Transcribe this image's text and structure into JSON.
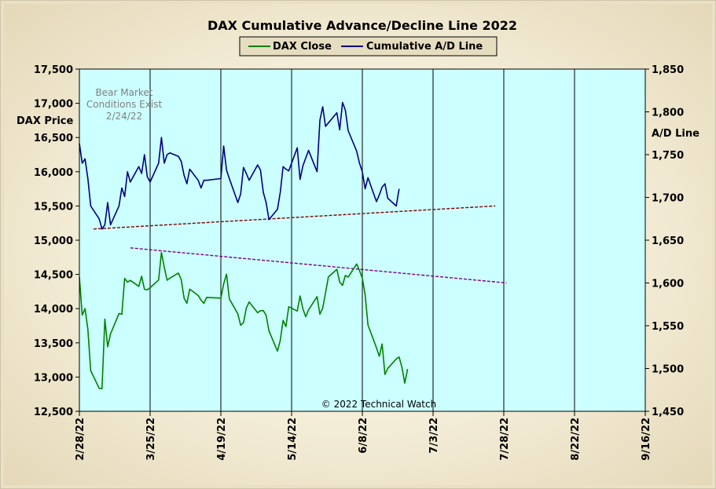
{
  "chart_data": {
    "type": "line",
    "title": "DAX Cumulative  Advance/Decline  Line  2022",
    "legend": {
      "position": "top-center",
      "entries": [
        {
          "label": "DAX Close",
          "color": "#008000"
        },
        {
          "label": "Cumulative A/D Line",
          "color": "#000080"
        }
      ]
    },
    "ylabel_left": "DAX Price",
    "ylabel_right": "A/D Line",
    "ylim_left": [
      12500,
      17500
    ],
    "ylim_right": [
      1450,
      1850
    ],
    "yticks_left": [
      "17,500",
      "17,000",
      "16,500",
      "16,000",
      "15,500",
      "15,000",
      "14,500",
      "14,000",
      "13,500",
      "13,000",
      "12,500"
    ],
    "yticks_right": [
      "1,850",
      "1,800",
      "1,750",
      "1,700",
      "1,650",
      "1,600",
      "1,550",
      "1,500",
      "1,450"
    ],
    "x_range": [
      "2022-02-28",
      "2022-09-16"
    ],
    "xticks": [
      "2/28/22",
      "3/25/22",
      "4/19/22",
      "5/14/22",
      "6/8/22",
      "7/3/22",
      "7/28/22",
      "8/22/22",
      "9/16/22"
    ],
    "grid": "vertical-only",
    "background": "#ccffff",
    "annotations": {
      "bear_market": [
        "Bear Market",
        "Conditions  Exist",
        "2/24/22"
      ],
      "copyright": "© 2022 Technical  Watch"
    },
    "series": [
      {
        "name": "DAX Close",
        "axis": "left",
        "color": "#008000",
        "points": [
          [
            "2022-02-28",
            14461
          ],
          [
            "2022-03-01",
            13905
          ],
          [
            "2022-03-02",
            14000
          ],
          [
            "2022-03-03",
            13699
          ],
          [
            "2022-03-04",
            13095
          ],
          [
            "2022-03-07",
            12835
          ],
          [
            "2022-03-08",
            12831
          ],
          [
            "2022-03-09",
            13848
          ],
          [
            "2022-03-10",
            13443
          ],
          [
            "2022-03-11",
            13629
          ],
          [
            "2022-03-14",
            13929
          ],
          [
            "2022-03-15",
            13918
          ],
          [
            "2022-03-16",
            14441
          ],
          [
            "2022-03-17",
            14388
          ],
          [
            "2022-03-18",
            14413
          ],
          [
            "2022-03-21",
            14326
          ],
          [
            "2022-03-22",
            14474
          ],
          [
            "2022-03-23",
            14283
          ],
          [
            "2022-03-24",
            14274
          ],
          [
            "2022-03-25",
            14306
          ],
          [
            "2022-03-28",
            14418
          ],
          [
            "2022-03-29",
            14820
          ],
          [
            "2022-03-30",
            14606
          ],
          [
            "2022-03-31",
            14415
          ],
          [
            "2022-04-01",
            14446
          ],
          [
            "2022-04-04",
            14519
          ],
          [
            "2022-04-05",
            14424
          ],
          [
            "2022-04-06",
            14152
          ],
          [
            "2022-04-07",
            14078
          ],
          [
            "2022-04-08",
            14284
          ],
          [
            "2022-04-11",
            14193
          ],
          [
            "2022-04-12",
            14125
          ],
          [
            "2022-04-13",
            14077
          ],
          [
            "2022-04-14",
            14164
          ],
          [
            "2022-04-19",
            14154
          ],
          [
            "2022-04-20",
            14362
          ],
          [
            "2022-04-21",
            14503
          ],
          [
            "2022-04-22",
            14142
          ],
          [
            "2022-04-25",
            13924
          ],
          [
            "2022-04-26",
            13757
          ],
          [
            "2022-04-27",
            13794
          ],
          [
            "2022-04-28",
            14008
          ],
          [
            "2022-04-29",
            14098
          ],
          [
            "2022-05-02",
            13940
          ],
          [
            "2022-05-03",
            13970
          ],
          [
            "2022-05-04",
            13971
          ],
          [
            "2022-05-05",
            13902
          ],
          [
            "2022-05-06",
            13674
          ],
          [
            "2022-05-09",
            13380
          ],
          [
            "2022-05-10",
            13535
          ],
          [
            "2022-05-11",
            13828
          ],
          [
            "2022-05-12",
            13739
          ],
          [
            "2022-05-13",
            14027
          ],
          [
            "2022-05-16",
            13964
          ],
          [
            "2022-05-17",
            14186
          ],
          [
            "2022-05-18",
            13996
          ],
          [
            "2022-05-19",
            13882
          ],
          [
            "2022-05-20",
            13982
          ],
          [
            "2022-05-23",
            14176
          ],
          [
            "2022-05-24",
            13919
          ],
          [
            "2022-05-25",
            14008
          ],
          [
            "2022-05-26",
            14232
          ],
          [
            "2022-05-27",
            14462
          ],
          [
            "2022-05-30",
            14575
          ],
          [
            "2022-05-31",
            14388
          ],
          [
            "2022-06-01",
            14340
          ],
          [
            "2022-06-02",
            14485
          ],
          [
            "2022-06-03",
            14460
          ],
          [
            "2022-06-06",
            14653
          ],
          [
            "2022-06-07",
            14556
          ],
          [
            "2022-06-08",
            14446
          ],
          [
            "2022-06-09",
            14199
          ],
          [
            "2022-06-10",
            13762
          ],
          [
            "2022-06-13",
            13427
          ],
          [
            "2022-06-14",
            13304
          ],
          [
            "2022-06-15",
            13483
          ],
          [
            "2022-06-16",
            13038
          ],
          [
            "2022-06-17",
            13127
          ],
          [
            "2022-06-20",
            13265
          ],
          [
            "2022-06-21",
            13292
          ],
          [
            "2022-06-22",
            13145
          ],
          [
            "2022-06-23",
            12912
          ],
          [
            "2022-06-24",
            13118
          ]
        ]
      },
      {
        "name": "Cumulative A/D Line",
        "axis": "right",
        "color": "#000080",
        "points": [
          [
            "2022-02-28",
            1763
          ],
          [
            "2022-03-01",
            1740
          ],
          [
            "2022-03-02",
            1745
          ],
          [
            "2022-03-03",
            1722
          ],
          [
            "2022-03-04",
            1690
          ],
          [
            "2022-03-07",
            1675
          ],
          [
            "2022-03-08",
            1663
          ],
          [
            "2022-03-09",
            1668
          ],
          [
            "2022-03-10",
            1694
          ],
          [
            "2022-03-11",
            1668
          ],
          [
            "2022-03-14",
            1690
          ],
          [
            "2022-03-15",
            1711
          ],
          [
            "2022-03-16",
            1701
          ],
          [
            "2022-03-17",
            1730
          ],
          [
            "2022-03-18",
            1718
          ],
          [
            "2022-03-21",
            1736
          ],
          [
            "2022-03-22",
            1728
          ],
          [
            "2022-03-23",
            1750
          ],
          [
            "2022-03-24",
            1724
          ],
          [
            "2022-03-25",
            1718
          ],
          [
            "2022-03-28",
            1740
          ],
          [
            "2022-03-29",
            1770
          ],
          [
            "2022-03-30",
            1740
          ],
          [
            "2022-03-31",
            1750
          ],
          [
            "2022-04-01",
            1752
          ],
          [
            "2022-04-04",
            1748
          ],
          [
            "2022-04-05",
            1742
          ],
          [
            "2022-04-06",
            1726
          ],
          [
            "2022-04-07",
            1716
          ],
          [
            "2022-04-08",
            1733
          ],
          [
            "2022-04-11",
            1720
          ],
          [
            "2022-04-12",
            1711
          ],
          [
            "2022-04-13",
            1720
          ],
          [
            "2022-04-14",
            1720
          ],
          [
            "2022-04-19",
            1722
          ],
          [
            "2022-04-20",
            1760
          ],
          [
            "2022-04-21",
            1732
          ],
          [
            "2022-04-22",
            1722
          ],
          [
            "2022-04-25",
            1694
          ],
          [
            "2022-04-26",
            1704
          ],
          [
            "2022-04-27",
            1735
          ],
          [
            "2022-04-28",
            1728
          ],
          [
            "2022-04-29",
            1720
          ],
          [
            "2022-05-02",
            1738
          ],
          [
            "2022-05-03",
            1732
          ],
          [
            "2022-05-04",
            1706
          ],
          [
            "2022-05-05",
            1694
          ],
          [
            "2022-05-06",
            1674
          ],
          [
            "2022-05-09",
            1686
          ],
          [
            "2022-05-10",
            1706
          ],
          [
            "2022-05-11",
            1736
          ],
          [
            "2022-05-12",
            1733
          ],
          [
            "2022-05-13",
            1731
          ],
          [
            "2022-05-16",
            1758
          ],
          [
            "2022-05-17",
            1721
          ],
          [
            "2022-05-18",
            1737
          ],
          [
            "2022-05-19",
            1746
          ],
          [
            "2022-05-20",
            1755
          ],
          [
            "2022-05-23",
            1730
          ],
          [
            "2022-05-24",
            1790
          ],
          [
            "2022-05-25",
            1806
          ],
          [
            "2022-05-26",
            1783
          ],
          [
            "2022-05-27",
            1787
          ],
          [
            "2022-05-30",
            1799
          ],
          [
            "2022-05-31",
            1779
          ],
          [
            "2022-06-01",
            1811
          ],
          [
            "2022-06-02",
            1802
          ],
          [
            "2022-06-03",
            1778
          ],
          [
            "2022-06-06",
            1754
          ],
          [
            "2022-06-07",
            1740
          ],
          [
            "2022-06-08",
            1730
          ],
          [
            "2022-06-09",
            1710
          ],
          [
            "2022-06-10",
            1723
          ],
          [
            "2022-06-13",
            1695
          ],
          [
            "2022-06-14",
            1703
          ],
          [
            "2022-06-15",
            1712
          ],
          [
            "2022-06-16",
            1716
          ],
          [
            "2022-06-17",
            1699
          ],
          [
            "2022-06-20",
            1690
          ],
          [
            "2022-06-21",
            1710
          ]
        ]
      },
      {
        "name": "",
        "axis": "right",
        "style": "dashed",
        "color": "#800000",
        "points": [
          [
            "2022-03-05",
            1663
          ],
          [
            "2022-07-25",
            1690
          ]
        ]
      },
      {
        "name": "",
        "axis": "right",
        "style": "dashed",
        "color": "#800080",
        "points": [
          [
            "2022-03-18",
            1641
          ],
          [
            "2022-07-29",
            1600
          ]
        ]
      }
    ]
  }
}
